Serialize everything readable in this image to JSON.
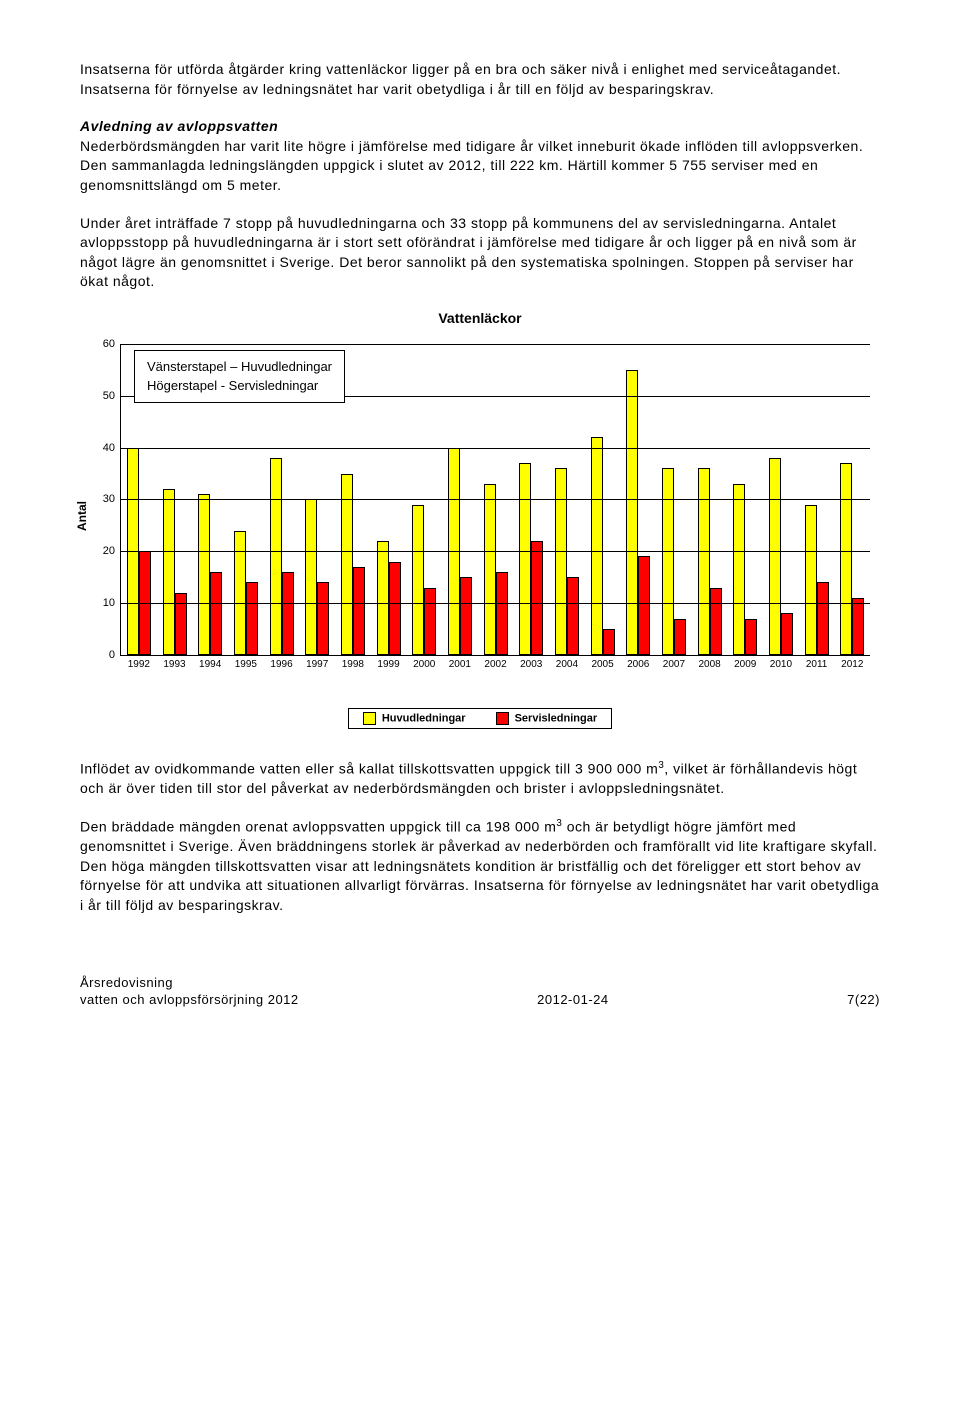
{
  "paragraphs": {
    "p1": "Insatserna för utförda åtgärder kring vattenläckor ligger på en bra och säker nivå i enlighet med serviceåtagandet. Insatserna för förnyelse av ledningsnätet har varit obetydliga i år till en följd av besparingskrav.",
    "h2": "Avledning av avloppsvatten",
    "p2": "Nederbördsmängden har varit lite högre i jämförelse med tidigare år vilket inneburit ökade inflöden till avloppsverken. Den sammanlagda ledningslängden uppgick i slutet av 2012, till 222 km. Härtill kommer 5 755 serviser med en genomsnittslängd om 5 meter.",
    "p3": "Under året inträffade 7 stopp på huvudledningarna och 33 stopp på kommunens del av servisledningarna. Antalet avloppsstopp på huvudledningarna är i stort sett oförändrat i jämförelse med tidigare år och ligger på en nivå som är något lägre än genomsnittet i Sverige. Det beror sannolikt på den systematiska spolningen. Stoppen på serviser har ökat något.",
    "p4_pre": "Inflödet av ovidkommande vatten eller så kallat tillskottsvatten uppgick till 3 900 000 m",
    "p4_post": ", vilket är förhållandevis högt och är över tiden till stor del påverkat av nederbördsmängden och brister i avloppsledningsnätet.",
    "p5_pre": "Den bräddade mängden orenat avloppsvatten uppgick till ca 198 000 m",
    "p5_post": " och är betydligt högre jämfört med genomsnittet i Sverige. Även bräddningens storlek är påverkad av nederbörden och framförallt vid lite kraftigare skyfall. Den höga mängden tillskottsvatten visar att ledningsnätets kondition är bristfällig och det föreligger ett stort behov av förnyelse för att undvika att situationen allvarligt förvärras. Insatserna för förnyelse av ledningsnätet har varit obetydliga i år till följd av besparingskrav."
  },
  "chart": {
    "title": "Vattenläckor",
    "y_axis_title": "Antal",
    "ymax": 60,
    "yticks": [
      0,
      10,
      20,
      30,
      40,
      50,
      60
    ],
    "overlay_legend_l1": "Vänsterstapel – Huvudledningar",
    "overlay_legend_l2": "Högerstapel - Servisledningar",
    "bottom_legend_main": "Huvudledningar",
    "bottom_legend_serv": "Servisledningar",
    "series": [
      {
        "year": "1992",
        "main": 40,
        "serv": 20
      },
      {
        "year": "1993",
        "main": 32,
        "serv": 12
      },
      {
        "year": "1994",
        "main": 31,
        "serv": 16
      },
      {
        "year": "1995",
        "main": 24,
        "serv": 14
      },
      {
        "year": "1996",
        "main": 38,
        "serv": 16
      },
      {
        "year": "1997",
        "main": 30,
        "serv": 14
      },
      {
        "year": "1998",
        "main": 35,
        "serv": 17
      },
      {
        "year": "1999",
        "main": 22,
        "serv": 18
      },
      {
        "year": "2000",
        "main": 29,
        "serv": 13
      },
      {
        "year": "2001",
        "main": 40,
        "serv": 15
      },
      {
        "year": "2002",
        "main": 33,
        "serv": 16
      },
      {
        "year": "2003",
        "main": 37,
        "serv": 22
      },
      {
        "year": "2004",
        "main": 36,
        "serv": 15
      },
      {
        "year": "2005",
        "main": 42,
        "serv": 5
      },
      {
        "year": "2006",
        "main": 55,
        "serv": 19
      },
      {
        "year": "2007",
        "main": 36,
        "serv": 7
      },
      {
        "year": "2008",
        "main": 36,
        "serv": 13
      },
      {
        "year": "2009",
        "main": 33,
        "serv": 7
      },
      {
        "year": "2010",
        "main": 38,
        "serv": 8
      },
      {
        "year": "2011",
        "main": 29,
        "serv": 14
      },
      {
        "year": "2012",
        "main": 37,
        "serv": 11
      }
    ]
  },
  "footer": {
    "left_l1": "Årsredovisning",
    "left_l2": "vatten och avloppsförsörjning 2012",
    "center": "2012-01-24",
    "right": "7(22)"
  }
}
